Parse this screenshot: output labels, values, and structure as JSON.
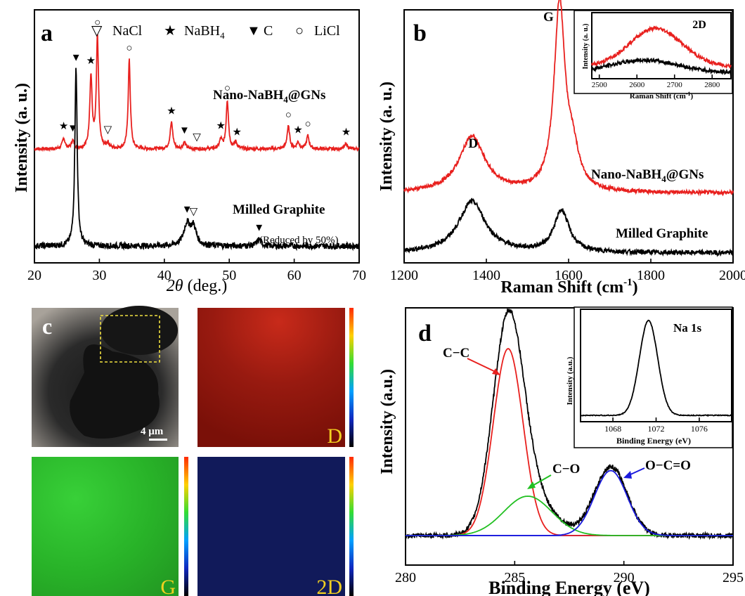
{
  "chart_data": [
    {
      "type": "line",
      "panel": "a",
      "xlabel_symbol": "2θ",
      "xlabel_rest": " (deg.)",
      "ylabel": "Intensity (a. u.)",
      "xlim": [
        20,
        70
      ],
      "x_ticks": [
        20,
        30,
        40,
        50,
        60,
        70
      ],
      "legend": [
        {
          "marker": "▽",
          "label": "NaCl"
        },
        {
          "marker": "★",
          "label": "NaBH",
          "sub": "4"
        },
        {
          "marker": "▼",
          "label": "C"
        },
        {
          "marker": "○",
          "label": "LiCl"
        }
      ],
      "series": [
        {
          "name_pre": "Nano-NaBH",
          "name_sub": "4",
          "name_post": "@GNs",
          "color": "#e8201e",
          "baseline": 0.0,
          "noise": 0.012,
          "peaks": [
            [
              24.5,
              0.08,
              0.25
            ],
            [
              25.9,
              0.06,
              0.25
            ],
            [
              28.7,
              0.55,
              0.22
            ],
            [
              29.7,
              0.85,
              0.2
            ],
            [
              31.3,
              0.04,
              0.25
            ],
            [
              34.6,
              0.68,
              0.2
            ],
            [
              41.1,
              0.2,
              0.25
            ],
            [
              43.1,
              0.05,
              0.25
            ],
            [
              48.7,
              0.07,
              0.25
            ],
            [
              49.7,
              0.37,
              0.22
            ],
            [
              51.0,
              0.05,
              0.25
            ],
            [
              59.1,
              0.17,
              0.25
            ],
            [
              60.6,
              0.05,
              0.25
            ],
            [
              62.1,
              0.1,
              0.25
            ],
            [
              68.0,
              0.04,
              0.25
            ]
          ]
        },
        {
          "name": "Milled Graphite",
          "color": "#000000",
          "baseline": 0.0,
          "noise": 0.014,
          "peaks": [
            [
              26.4,
              0.82,
              0.22
            ],
            [
              43.5,
              0.1,
              0.6
            ],
            [
              44.5,
              0.08,
              0.5
            ],
            [
              54.6,
              0.03,
              0.4
            ]
          ]
        }
      ],
      "markers": [
        {
          "x": 24.5,
          "sym": "★",
          "on": 0
        },
        {
          "x": 25.9,
          "sym": "▼",
          "on": 0
        },
        {
          "x": 28.7,
          "sym": "★",
          "on": 0
        },
        {
          "x": 29.7,
          "sym": "○",
          "on": 0
        },
        {
          "x": 31.3,
          "sym": "▽",
          "on": 0
        },
        {
          "x": 34.6,
          "sym": "○",
          "on": 0
        },
        {
          "x": 41.1,
          "sym": "★",
          "on": 0
        },
        {
          "x": 43.1,
          "sym": "▼",
          "on": 0
        },
        {
          "x": 45.0,
          "sym": "▽",
          "on": 0
        },
        {
          "x": 48.7,
          "sym": "★",
          "on": 0
        },
        {
          "x": 49.7,
          "sym": "○",
          "on": 0
        },
        {
          "x": 51.2,
          "sym": "★",
          "on": 0
        },
        {
          "x": 59.1,
          "sym": "○",
          "on": 0
        },
        {
          "x": 60.6,
          "sym": "★",
          "on": 0
        },
        {
          "x": 62.1,
          "sym": "○",
          "on": 0
        },
        {
          "x": 68.0,
          "sym": "★",
          "on": 0
        },
        {
          "x": 26.4,
          "sym": "▼",
          "on": 1
        },
        {
          "x": 43.5,
          "sym": "▼",
          "on": 1
        },
        {
          "x": 44.5,
          "sym": "▽",
          "on": 1
        },
        {
          "x": 54.6,
          "sym": "▼",
          "on": 1
        }
      ],
      "note": "(Reduced by 50%)"
    },
    {
      "type": "line",
      "panel": "b",
      "xlabel": "Raman Shift (cm",
      "xlabel_sup": "-1",
      "xlabel_close": ")",
      "ylabel": "Intensity (a. u.)",
      "xlim": [
        1200,
        2000
      ],
      "x_ticks": [
        1200,
        1400,
        1600,
        1800,
        2000
      ],
      "peak_labels": [
        {
          "x": 1368,
          "label": "D"
        },
        {
          "x": 1575,
          "label": "G"
        }
      ],
      "series": [
        {
          "name_pre": "Nano-NaBH",
          "name_sub": "4",
          "name_post": "@GNs",
          "color": "#e8201e",
          "baseline": 0.08,
          "noise": 0.01,
          "peaks": [
            [
              1365,
              0.3,
              38
            ],
            [
              1578,
              1.0,
              16
            ],
            [
              1610,
              0.18,
              18
            ]
          ]
        },
        {
          "name": "Milled Graphite",
          "color": "#000000",
          "baseline": 0.0,
          "noise": 0.012,
          "peaks": [
            [
              1365,
              0.27,
              40
            ],
            [
              1583,
              0.22,
              22
            ]
          ]
        }
      ],
      "inset": {
        "title": "2D",
        "xlabel": "Raman Shift (cm",
        "xlabel_sup": "-1",
        "xlabel_close": ")",
        "ylabel": "Intensity (a. u.)",
        "xlim": [
          2480,
          2850
        ],
        "x_ticks": [
          2500,
          2600,
          2700,
          2800
        ],
        "series": [
          {
            "color": "#e8201e",
            "baseline": 0.15,
            "noise": 0.03,
            "peaks": [
              [
                2650,
                0.6,
                70
              ]
            ]
          },
          {
            "color": "#000000",
            "baseline": 0.05,
            "noise": 0.03,
            "peaks": [
              [
                2620,
                0.2,
                90
              ]
            ]
          }
        ]
      }
    },
    {
      "type": "line",
      "panel": "d",
      "xlabel": "Binding Energy (eV)",
      "ylabel": "Intensity (a.u.)",
      "xlim": [
        280,
        295
      ],
      "x_ticks": [
        280,
        285,
        290,
        295
      ],
      "series": [
        {
          "name": "envelope",
          "color": "#000000",
          "noise": 0.012,
          "peaks": [
            [
              284.7,
              1.0,
              0.7
            ],
            [
              285.6,
              0.2,
              1.1
            ],
            [
              289.4,
              0.35,
              0.75
            ]
          ],
          "tail": true
        },
        {
          "name": "C−C",
          "color": "#e8201e",
          "noise": 0,
          "peaks": [
            [
              284.7,
              0.95,
              0.68
            ]
          ]
        },
        {
          "name": "C−O",
          "color": "#22c022",
          "noise": 0,
          "peaks": [
            [
              285.6,
              0.2,
              1.1
            ]
          ]
        },
        {
          "name": "O−C=O",
          "color": "#1a1add",
          "noise": 0,
          "peaks": [
            [
              289.4,
              0.33,
              0.75
            ]
          ]
        }
      ],
      "annotations": [
        {
          "label": "C−C",
          "color": "#e8201e"
        },
        {
          "label": "C−O",
          "color": "#22c022"
        },
        {
          "label": "O−C=O",
          "color": "#1a1add"
        }
      ],
      "inset": {
        "title": "Na 1s",
        "xlabel": "Binding Energy (eV)",
        "ylabel": "Intensity (a.u.)",
        "xlim": [
          1065,
          1079
        ],
        "x_ticks": [
          1068,
          1072,
          1076
        ],
        "series": [
          {
            "color": "#000000",
            "baseline": 0.02,
            "noise": 0.004,
            "peaks": [
              [
                1071.3,
                0.9,
                0.85
              ]
            ]
          }
        ]
      }
    }
  ],
  "panel_c": {
    "label": "c",
    "scale_bar": "4 μm",
    "maps": [
      {
        "label": "D",
        "color": "#9a1a12"
      },
      {
        "label": "G",
        "color": "#2cb42c"
      },
      {
        "label": "2D",
        "color": "#121a5c"
      }
    ],
    "label_color": "#f2d020"
  },
  "panel_labels": {
    "a": "a",
    "b": "b",
    "d": "d"
  }
}
